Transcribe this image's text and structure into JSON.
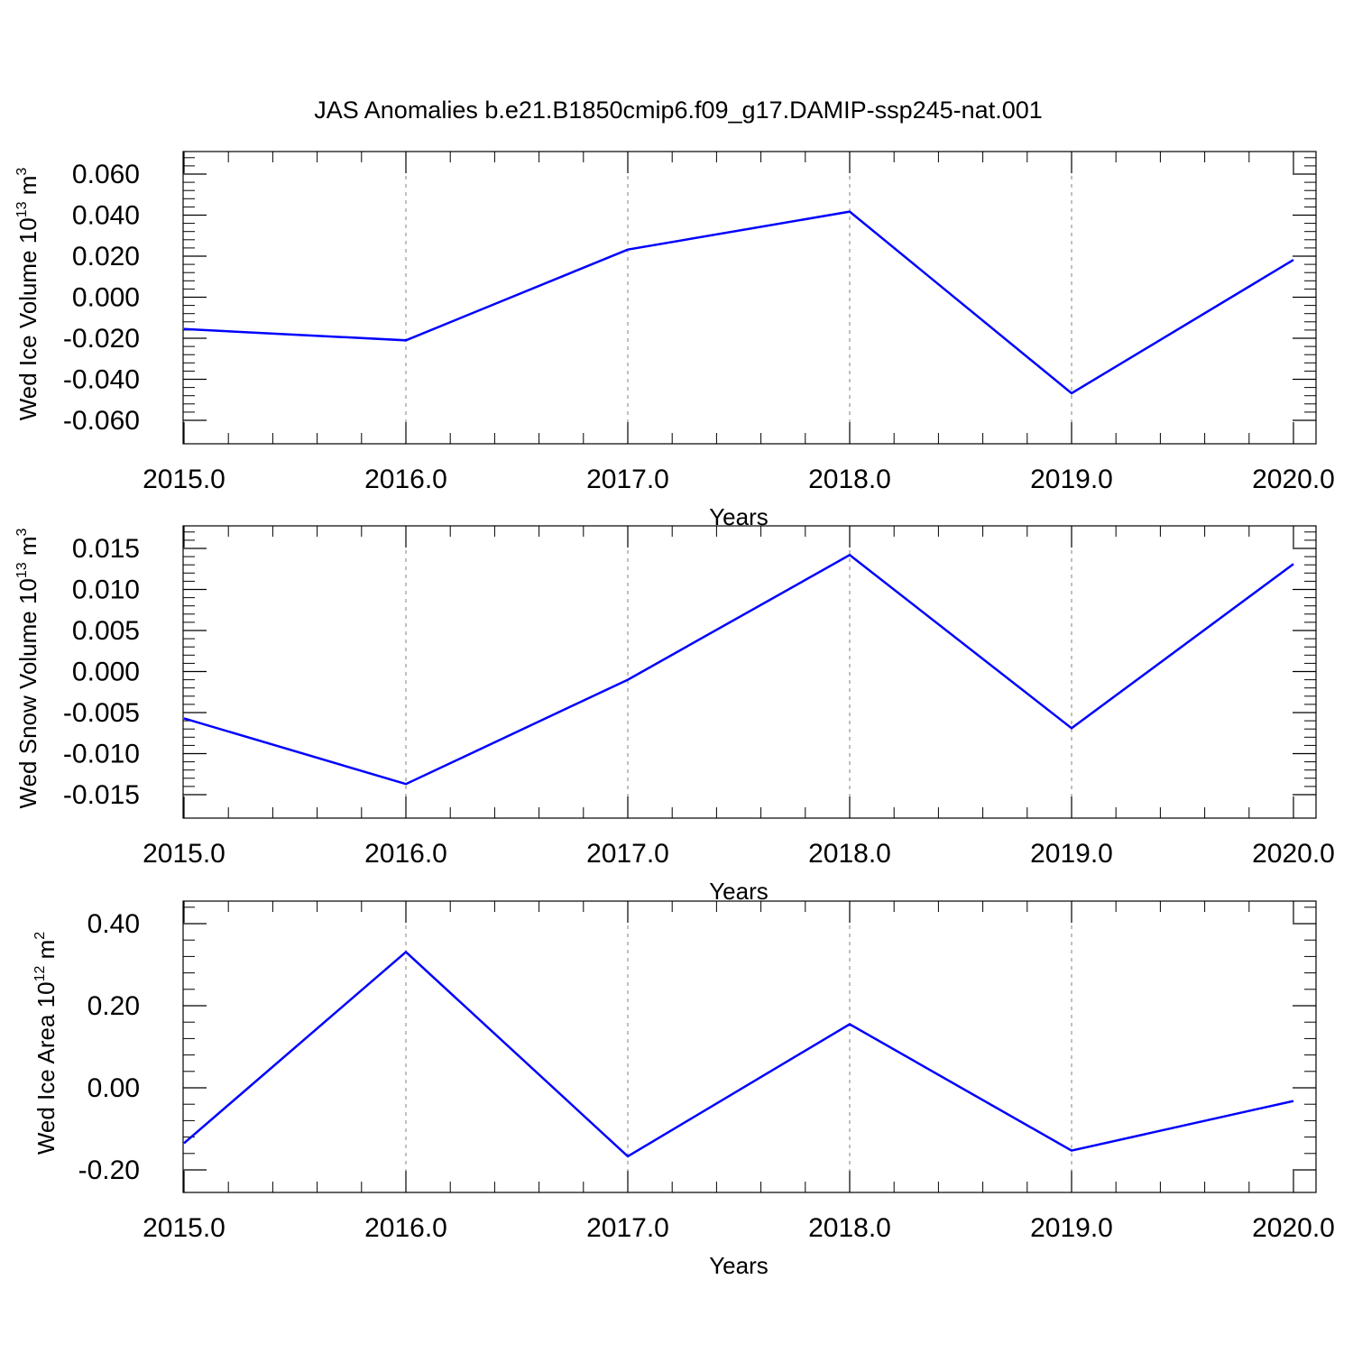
{
  "title": "JAS Anomalies b.e21.B1850cmip6.f09_g17.DAMIP-ssp245-nat.001",
  "colors": {
    "series": "#0000ff",
    "axis": "#000000",
    "grid": "#808080",
    "background": "#ffffff"
  },
  "chart_data": [
    {
      "type": "line",
      "title": "",
      "xlabel": "Years",
      "ylabel": {
        "prefix": "Wed Ice Volume 10",
        "exponent": "13",
        "unit": " m",
        "unit_exponent": "3"
      },
      "x": [
        2015,
        2016,
        2017,
        2018,
        2019,
        2020
      ],
      "xlim": [
        2015,
        2020
      ],
      "x_ticks": [
        "2015.0",
        "2016.0",
        "2017.0",
        "2018.0",
        "2019.0",
        "2020.0"
      ],
      "ylim": [
        -0.06,
        0.06
      ],
      "y_ticks": [
        "0.060",
        "0.040",
        "0.020",
        "0.000",
        "-0.020",
        "-0.040",
        "-0.060"
      ],
      "y_tick_values": [
        0.06,
        0.04,
        0.02,
        0.0,
        -0.02,
        -0.04,
        -0.06
      ],
      "y_minor_per_major": 4,
      "vertical_grid": "dashed at major x ticks",
      "series": [
        {
          "values": [
            -0.0155,
            -0.021,
            0.0232,
            0.0417,
            -0.0468,
            0.0182
          ]
        }
      ]
    },
    {
      "type": "line",
      "title": "",
      "xlabel": "Years",
      "ylabel": {
        "prefix": "Wed Snow Volume 10",
        "exponent": "13",
        "unit": " m",
        "unit_exponent": "3"
      },
      "x": [
        2015,
        2016,
        2017,
        2018,
        2019,
        2020
      ],
      "xlim": [
        2015,
        2020
      ],
      "x_ticks": [
        "2015.0",
        "2016.0",
        "2017.0",
        "2018.0",
        "2019.0",
        "2020.0"
      ],
      "ylim": [
        -0.015,
        0.015
      ],
      "y_ticks": [
        "0.015",
        "0.010",
        "0.005",
        "0.000",
        "-0.005",
        "-0.010",
        "-0.015"
      ],
      "y_tick_values": [
        0.015,
        0.01,
        0.005,
        0.0,
        -0.005,
        -0.01,
        -0.015
      ],
      "y_minor_per_major": 4,
      "vertical_grid": "dashed at major x ticks",
      "series": [
        {
          "values": [
            -0.0057,
            -0.0137,
            -0.001,
            0.0142,
            -0.0069,
            0.0131
          ]
        }
      ]
    },
    {
      "type": "line",
      "title": "",
      "xlabel": "Years",
      "ylabel": {
        "prefix": "Wed Ice Area 10",
        "exponent": "12",
        "unit": " m",
        "unit_exponent": "2"
      },
      "x": [
        2015,
        2016,
        2017,
        2018,
        2019,
        2020
      ],
      "xlim": [
        2015,
        2020
      ],
      "x_ticks": [
        "2015.0",
        "2016.0",
        "2017.0",
        "2018.0",
        "2019.0",
        "2020.0"
      ],
      "ylim": [
        -0.2,
        0.4
      ],
      "y_ticks": [
        "0.40",
        "0.20",
        "0.00",
        "-0.20"
      ],
      "y_tick_values": [
        0.4,
        0.2,
        0.0,
        -0.2
      ],
      "y_minor_per_major": 4,
      "vertical_grid": "dashed at major x ticks",
      "series": [
        {
          "values": [
            -0.135,
            0.331,
            -0.167,
            0.155,
            -0.153,
            -0.032
          ]
        }
      ]
    }
  ]
}
